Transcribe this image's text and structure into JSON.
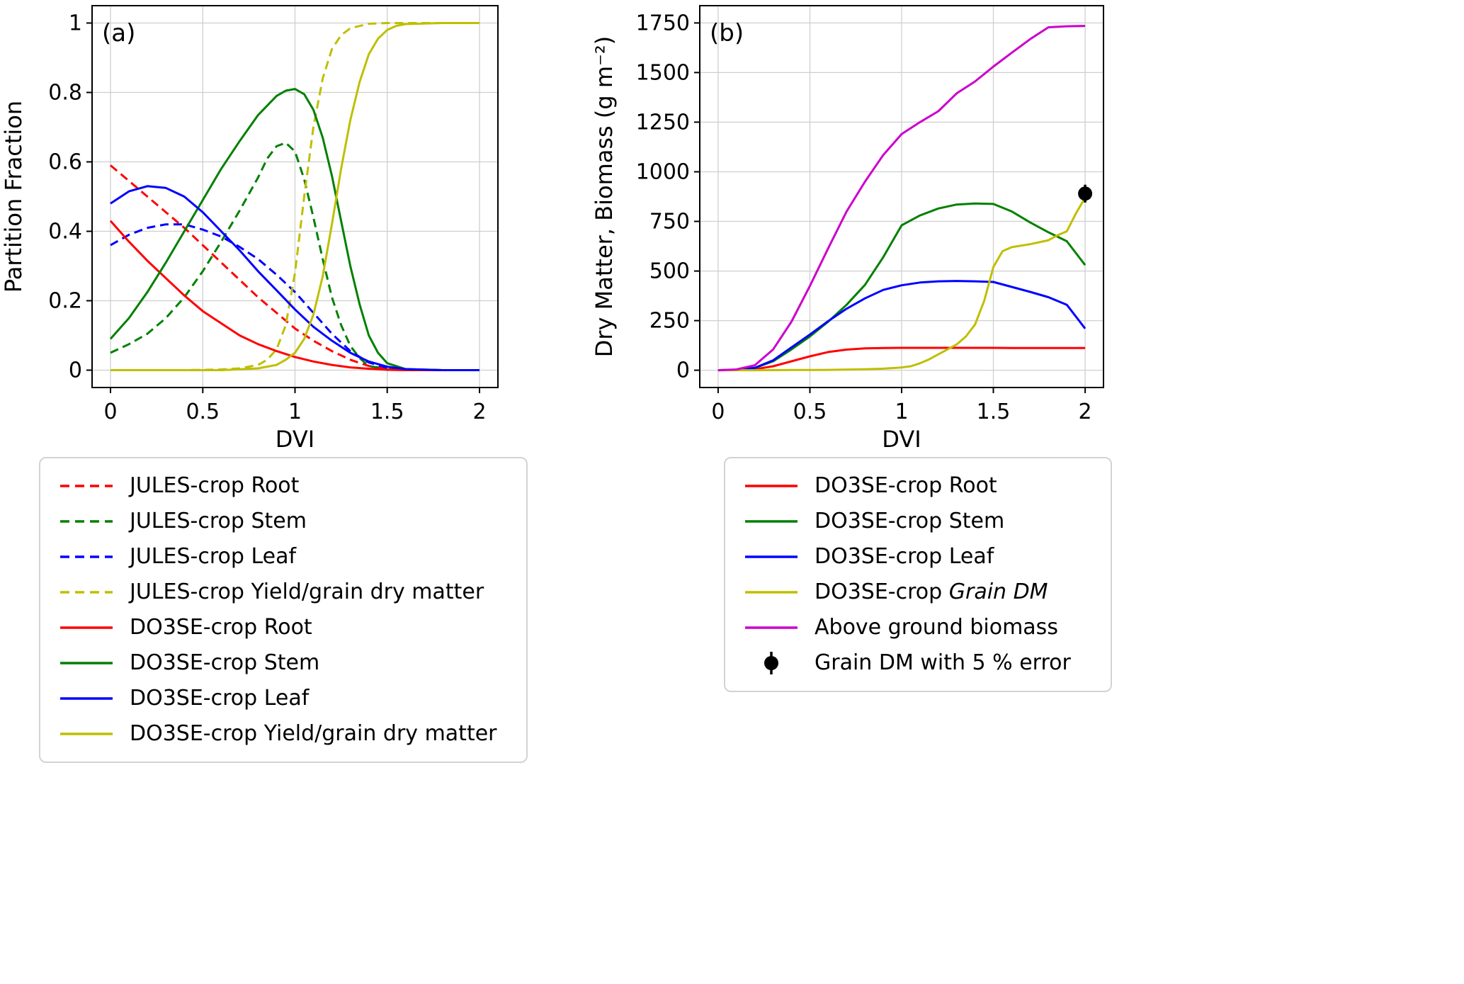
{
  "figure": {
    "background": "#ffffff"
  },
  "colors": {
    "red": "#ff0000",
    "green": "#008000",
    "blue": "#0000ff",
    "yellow": "#bfbf00",
    "magenta": "#cc00cc",
    "black": "#000000",
    "grid": "#cfcfcf",
    "spine": "#000000",
    "legend_border": "#d3d3d3"
  },
  "chart_data": [
    {
      "type": "line",
      "panel_label": "(a)",
      "xlabel": "DVI",
      "ylabel": "Partition Fraction",
      "xlim": [
        -0.1,
        2.1
      ],
      "ylim": [
        -0.05,
        1.05
      ],
      "xticks": [
        0,
        0.5,
        1,
        1.5,
        2
      ],
      "xtick_labels": [
        "0",
        "0.5",
        "1",
        "1.5",
        "2"
      ],
      "yticks": [
        0,
        0.2,
        0.4,
        0.6,
        0.8,
        1
      ],
      "ytick_labels": [
        "0",
        "0.2",
        "0.4",
        "0.6",
        "0.8",
        "1"
      ],
      "grid": true,
      "legend_position": "below",
      "series": [
        {
          "name": "JULES-crop Root",
          "color": "red",
          "dash": "dashed",
          "x": [
            0,
            0.1,
            0.2,
            0.3,
            0.4,
            0.5,
            0.6,
            0.7,
            0.8,
            0.9,
            1.0,
            1.1,
            1.2,
            1.3,
            1.4,
            1.5,
            1.6,
            1.8,
            2.0
          ],
          "y": [
            0.59,
            0.545,
            0.5,
            0.455,
            0.41,
            0.36,
            0.31,
            0.26,
            0.21,
            0.165,
            0.12,
            0.085,
            0.055,
            0.03,
            0.012,
            0.004,
            0.001,
            0,
            0
          ]
        },
        {
          "name": "JULES-crop Stem",
          "color": "green",
          "dash": "dashed",
          "x": [
            0,
            0.1,
            0.2,
            0.3,
            0.4,
            0.5,
            0.6,
            0.7,
            0.8,
            0.85,
            0.9,
            0.95,
            1.0,
            1.05,
            1.1,
            1.15,
            1.2,
            1.25,
            1.3,
            1.35,
            1.4,
            1.5,
            1.6,
            1.8,
            2.0
          ],
          "y": [
            0.05,
            0.075,
            0.105,
            0.15,
            0.21,
            0.285,
            0.37,
            0.46,
            0.555,
            0.61,
            0.645,
            0.655,
            0.63,
            0.55,
            0.44,
            0.32,
            0.21,
            0.13,
            0.07,
            0.035,
            0.012,
            0.002,
            0,
            0,
            0
          ]
        },
        {
          "name": "JULES-crop Leaf",
          "color": "blue",
          "dash": "dashed",
          "x": [
            0,
            0.1,
            0.2,
            0.3,
            0.4,
            0.5,
            0.6,
            0.7,
            0.8,
            0.9,
            1.0,
            1.1,
            1.2,
            1.3,
            1.4,
            1.5,
            1.6,
            1.8,
            2.0
          ],
          "y": [
            0.36,
            0.39,
            0.41,
            0.42,
            0.42,
            0.405,
            0.385,
            0.355,
            0.32,
            0.275,
            0.225,
            0.165,
            0.105,
            0.055,
            0.022,
            0.007,
            0.002,
            0,
            0
          ]
        },
        {
          "name": "JULES-crop Yield/grain dry matter",
          "color": "yellow",
          "dash": "dashed",
          "x": [
            0,
            0.2,
            0.4,
            0.6,
            0.7,
            0.8,
            0.85,
            0.9,
            0.95,
            1.0,
            1.05,
            1.1,
            1.15,
            1.2,
            1.25,
            1.3,
            1.4,
            1.5,
            1.6,
            1.8,
            2.0
          ],
          "y": [
            0,
            0,
            0,
            0.002,
            0.005,
            0.015,
            0.03,
            0.06,
            0.13,
            0.28,
            0.5,
            0.7,
            0.84,
            0.925,
            0.965,
            0.985,
            0.998,
            1,
            1,
            1,
            1
          ]
        },
        {
          "name": "DO3SE-crop Root",
          "color": "red",
          "dash": "solid",
          "x": [
            0,
            0.1,
            0.2,
            0.3,
            0.4,
            0.5,
            0.6,
            0.7,
            0.8,
            0.9,
            1.0,
            1.1,
            1.2,
            1.3,
            1.4,
            1.5,
            1.6,
            1.8,
            2.0
          ],
          "y": [
            0.43,
            0.37,
            0.315,
            0.265,
            0.215,
            0.17,
            0.135,
            0.1,
            0.075,
            0.055,
            0.038,
            0.025,
            0.015,
            0.008,
            0.004,
            0.001,
            0,
            0,
            0
          ]
        },
        {
          "name": "DO3SE-crop Stem",
          "color": "green",
          "dash": "solid",
          "x": [
            0,
            0.1,
            0.2,
            0.3,
            0.4,
            0.5,
            0.6,
            0.7,
            0.8,
            0.9,
            0.95,
            1.0,
            1.05,
            1.1,
            1.15,
            1.2,
            1.25,
            1.3,
            1.35,
            1.4,
            1.45,
            1.5,
            1.6,
            1.8,
            2.0
          ],
          "y": [
            0.09,
            0.15,
            0.225,
            0.31,
            0.4,
            0.49,
            0.58,
            0.66,
            0.735,
            0.79,
            0.805,
            0.81,
            0.795,
            0.75,
            0.67,
            0.56,
            0.43,
            0.3,
            0.19,
            0.1,
            0.05,
            0.02,
            0.003,
            0,
            0
          ]
        },
        {
          "name": "DO3SE-crop Leaf",
          "color": "blue",
          "dash": "solid",
          "x": [
            0,
            0.1,
            0.2,
            0.3,
            0.4,
            0.5,
            0.6,
            0.7,
            0.8,
            0.9,
            1.0,
            1.1,
            1.2,
            1.3,
            1.4,
            1.5,
            1.6,
            1.8,
            2.0
          ],
          "y": [
            0.48,
            0.515,
            0.53,
            0.525,
            0.5,
            0.455,
            0.4,
            0.345,
            0.285,
            0.23,
            0.175,
            0.125,
            0.085,
            0.05,
            0.025,
            0.01,
            0.003,
            0,
            0
          ]
        },
        {
          "name": "DO3SE-crop Yield/grain dry matter",
          "color": "yellow",
          "dash": "solid",
          "x": [
            0,
            0.2,
            0.4,
            0.6,
            0.8,
            0.9,
            0.95,
            1.0,
            1.05,
            1.1,
            1.15,
            1.2,
            1.25,
            1.3,
            1.35,
            1.4,
            1.45,
            1.5,
            1.55,
            1.6,
            1.8,
            2.0
          ],
          "y": [
            0,
            0,
            0,
            0,
            0.005,
            0.015,
            0.03,
            0.05,
            0.09,
            0.16,
            0.27,
            0.42,
            0.58,
            0.72,
            0.83,
            0.91,
            0.955,
            0.98,
            0.992,
            0.997,
            1,
            1
          ]
        }
      ]
    },
    {
      "type": "line",
      "panel_label": "(b)",
      "xlabel": "DVI",
      "ylabel": "Dry Matter, Biomass (g m⁻²)",
      "xlim": [
        -0.1,
        2.1
      ],
      "ylim": [
        -87,
        1837
      ],
      "xticks": [
        0,
        0.5,
        1,
        1.5,
        2
      ],
      "xtick_labels": [
        "0",
        "0.5",
        "1",
        "1.5",
        "2"
      ],
      "yticks": [
        0,
        250,
        500,
        750,
        1000,
        1250,
        1500,
        1750
      ],
      "ytick_labels": [
        "0",
        "250",
        "500",
        "750",
        "1000",
        "1250",
        "1500",
        "1750"
      ],
      "grid": true,
      "legend_position": "below",
      "series": [
        {
          "name": "DO3SE-crop Root",
          "color": "red",
          "dash": "solid",
          "x": [
            0,
            0.1,
            0.2,
            0.3,
            0.4,
            0.5,
            0.6,
            0.7,
            0.8,
            0.9,
            1.0,
            1.1,
            1.2,
            1.3,
            1.4,
            1.5,
            1.6,
            1.7,
            1.8,
            1.9,
            2.0
          ],
          "y": [
            0,
            1,
            5,
            20,
            45,
            70,
            92,
            104,
            110,
            112,
            113,
            113,
            113,
            113,
            113,
            113,
            112,
            112,
            112,
            112,
            112
          ]
        },
        {
          "name": "DO3SE-crop Stem",
          "color": "green",
          "dash": "solid",
          "x": [
            0,
            0.1,
            0.2,
            0.3,
            0.4,
            0.5,
            0.6,
            0.7,
            0.8,
            0.9,
            1.0,
            1.1,
            1.2,
            1.3,
            1.4,
            1.5,
            1.6,
            1.7,
            1.8,
            1.9,
            2.0
          ],
          "y": [
            0,
            2,
            12,
            45,
            105,
            170,
            245,
            330,
            430,
            570,
            730,
            780,
            815,
            835,
            840,
            838,
            800,
            745,
            695,
            650,
            530
          ]
        },
        {
          "name": "DO3SE-crop Leaf",
          "color": "blue",
          "dash": "solid",
          "x": [
            0,
            0.1,
            0.2,
            0.3,
            0.4,
            0.5,
            0.6,
            0.7,
            0.8,
            0.9,
            1.0,
            1.1,
            1.2,
            1.3,
            1.4,
            1.5,
            1.6,
            1.7,
            1.8,
            1.9,
            2.0
          ],
          "y": [
            0,
            2,
            12,
            50,
            115,
            180,
            248,
            310,
            362,
            405,
            428,
            442,
            448,
            450,
            448,
            445,
            420,
            395,
            368,
            330,
            210
          ]
        },
        {
          "name": "DO3SE-crop Grain DM",
          "color": "yellow",
          "dash": "solid",
          "x": [
            0,
            0.2,
            0.4,
            0.6,
            0.8,
            0.9,
            1.0,
            1.05,
            1.1,
            1.15,
            1.2,
            1.25,
            1.3,
            1.35,
            1.4,
            1.45,
            1.5,
            1.55,
            1.6,
            1.7,
            1.8,
            1.85,
            1.9,
            1.95,
            2.0
          ],
          "y": [
            0,
            0,
            1,
            2,
            5,
            8,
            14,
            20,
            35,
            55,
            80,
            105,
            130,
            170,
            230,
            350,
            520,
            600,
            620,
            635,
            655,
            680,
            700,
            790,
            870
          ]
        },
        {
          "name": "Above ground biomass",
          "color": "magenta",
          "dash": "solid",
          "x": [
            0,
            0.1,
            0.2,
            0.3,
            0.4,
            0.5,
            0.6,
            0.7,
            0.8,
            0.9,
            1.0,
            1.1,
            1.2,
            1.3,
            1.4,
            1.5,
            1.6,
            1.7,
            1.8,
            1.9,
            2.0
          ],
          "y": [
            0,
            4,
            25,
            105,
            245,
            425,
            615,
            800,
            950,
            1085,
            1190,
            1250,
            1305,
            1395,
            1455,
            1530,
            1600,
            1668,
            1728,
            1733,
            1735
          ]
        }
      ],
      "error_point": {
        "name": "Grain DM with 5 % error",
        "x": 2.0,
        "y": 890,
        "yerr": 45,
        "color": "black"
      }
    }
  ],
  "legends": [
    {
      "id": "legend-a",
      "items": [
        {
          "label": "JULES-crop Root",
          "color": "red",
          "dash": "dashed",
          "sample": "line"
        },
        {
          "label": "JULES-crop Stem",
          "color": "green",
          "dash": "dashed",
          "sample": "line"
        },
        {
          "label": "JULES-crop Leaf",
          "color": "blue",
          "dash": "dashed",
          "sample": "line"
        },
        {
          "label": "JULES-crop Yield/grain dry matter",
          "color": "yellow",
          "dash": "dashed",
          "sample": "line"
        },
        {
          "label": "DO3SE-crop Root",
          "color": "red",
          "dash": "solid",
          "sample": "line"
        },
        {
          "label": "DO3SE-crop Stem",
          "color": "green",
          "dash": "solid",
          "sample": "line"
        },
        {
          "label": "DO3SE-crop Leaf",
          "color": "blue",
          "dash": "solid",
          "sample": "line"
        },
        {
          "label": "DO3SE-crop Yield/grain dry matter",
          "color": "yellow",
          "dash": "solid",
          "sample": "line"
        }
      ]
    },
    {
      "id": "legend-b",
      "items": [
        {
          "label": "DO3SE-crop Root",
          "color": "red",
          "dash": "solid",
          "sample": "line"
        },
        {
          "label": "DO3SE-crop Stem",
          "color": "green",
          "dash": "solid",
          "sample": "line"
        },
        {
          "label": "DO3SE-crop Leaf",
          "color": "blue",
          "dash": "solid",
          "sample": "line"
        },
        {
          "label": "DO3SE-crop ",
          "label_italic": "Grain DM",
          "color": "yellow",
          "dash": "solid",
          "sample": "line"
        },
        {
          "label": "Above ground biomass",
          "color": "magenta",
          "dash": "solid",
          "sample": "line"
        },
        {
          "label": "Grain DM with 5 % error",
          "color": "black",
          "sample": "errorbar"
        }
      ]
    }
  ]
}
